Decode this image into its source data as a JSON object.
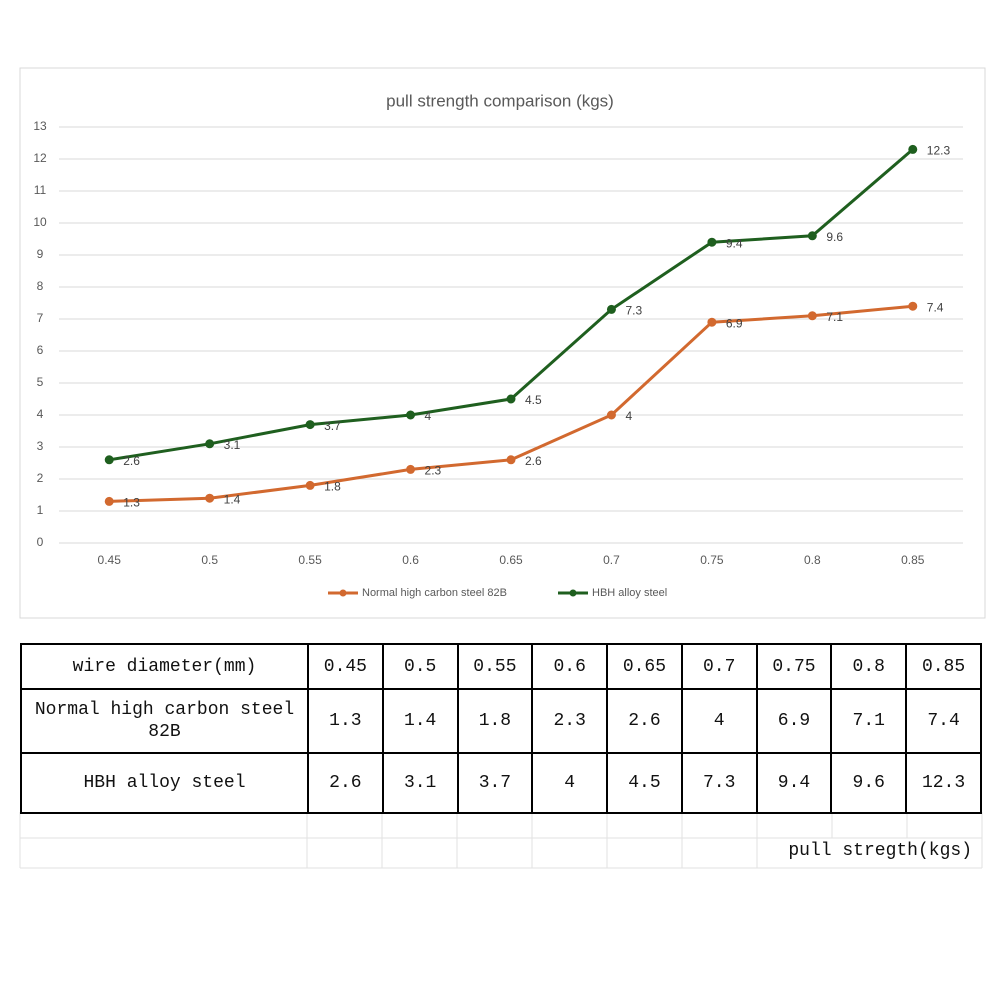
{
  "chart_data": {
    "type": "line",
    "title": "pull strength comparison (kgs)",
    "categories": [
      "0.45",
      "0.5",
      "0.55",
      "0.6",
      "0.65",
      "0.7",
      "0.75",
      "0.8",
      "0.85"
    ],
    "series": [
      {
        "name": "Normal high carbon steel 82B",
        "color": "#d2692f",
        "values": [
          1.3,
          1.4,
          1.8,
          2.3,
          2.6,
          4,
          6.9,
          7.1,
          7.4
        ]
      },
      {
        "name": "HBH alloy steel",
        "color": "#1f5f1f",
        "values": [
          2.6,
          3.1,
          3.7,
          4,
          4.5,
          7.3,
          9.4,
          9.6,
          12.3
        ]
      }
    ],
    "ylim": [
      0,
      13
    ],
    "yticks": [
      0,
      1,
      2,
      3,
      4,
      5,
      6,
      7,
      8,
      9,
      10,
      11,
      12,
      13
    ],
    "grid": true,
    "legend": "bottom",
    "data_labels": true
  },
  "table": {
    "rows": [
      [
        "wire diameter(mm)",
        0.45,
        0.5,
        0.55,
        0.6,
        0.65,
        0.7,
        0.75,
        0.8,
        0.85
      ],
      [
        "Normal high carbon steel 82B",
        1.3,
        1.4,
        1.8,
        2.3,
        2.6,
        4,
        6.9,
        7.1,
        7.4
      ],
      [
        "HBH alloy steel",
        2.6,
        3.1,
        3.7,
        4,
        4.5,
        7.3,
        9.4,
        9.6,
        12.3
      ]
    ],
    "footer": "pull stregth(kgs)"
  }
}
